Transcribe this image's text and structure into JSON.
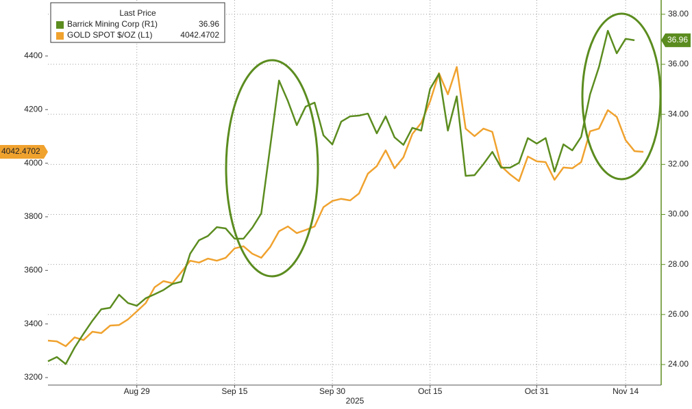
{
  "chart_data": {
    "type": "line",
    "legend_title": "Last Price",
    "xlabel": "2025",
    "grid": true,
    "legend": "upper left",
    "x": [
      "2025-08-15",
      "2025-08-18",
      "2025-08-19",
      "2025-08-20",
      "2025-08-21",
      "2025-08-22",
      "2025-08-25",
      "2025-08-26",
      "2025-08-27",
      "2025-08-28",
      "2025-08-29",
      "2025-09-01",
      "2025-09-02",
      "2025-09-03",
      "2025-09-04",
      "2025-09-05",
      "2025-09-08",
      "2025-09-09",
      "2025-09-10",
      "2025-09-11",
      "2025-09-12",
      "2025-09-15",
      "2025-09-16",
      "2025-09-17",
      "2025-09-18",
      "2025-09-19",
      "2025-09-22",
      "2025-09-23",
      "2025-09-24",
      "2025-09-25",
      "2025-09-26",
      "2025-09-29",
      "2025-09-30",
      "2025-10-01",
      "2025-10-02",
      "2025-10-03",
      "2025-10-06",
      "2025-10-07",
      "2025-10-08",
      "2025-10-09",
      "2025-10-10",
      "2025-10-13",
      "2025-10-14",
      "2025-10-15",
      "2025-10-16",
      "2025-10-17",
      "2025-10-20",
      "2025-10-21",
      "2025-10-22",
      "2025-10-23",
      "2025-10-24",
      "2025-10-27",
      "2025-10-28",
      "2025-10-29",
      "2025-10-30",
      "2025-10-31",
      "2025-11-03",
      "2025-11-04",
      "2025-11-05",
      "2025-11-06",
      "2025-11-07",
      "2025-11-10",
      "2025-11-11",
      "2025-11-12",
      "2025-11-13",
      "2025-11-14",
      "2025-11-17",
      "2025-11-18"
    ],
    "xlim": [
      "2025-08-15",
      "2025-11-20"
    ],
    "xticks": [
      {
        "value": "2025-08-29",
        "label": "Aug 29"
      },
      {
        "value": "2025-09-15",
        "label": "Sep 15"
      },
      {
        "value": "2025-09-30",
        "label": "Sep 30"
      },
      {
        "value": "2025-10-15",
        "label": "Oct 15"
      },
      {
        "value": "2025-10-31",
        "label": "Oct 31"
      },
      {
        "value": "2025-11-14",
        "label": "Nov 14"
      }
    ],
    "ylim": [
      3172,
      4609
    ],
    "yticks": [
      3200,
      3400,
      3600,
      3800,
      4000,
      4200,
      4400
    ],
    "y2lim": [
      23.18,
      38.57
    ],
    "y2ticks": [
      {
        "value": 24,
        "label": "24.00"
      },
      {
        "value": 26,
        "label": "26.00"
      },
      {
        "value": 28,
        "label": "28.00"
      },
      {
        "value": 30,
        "label": "30.00"
      },
      {
        "value": 32,
        "label": "32.00"
      },
      {
        "value": 34,
        "label": "34.00"
      },
      {
        "value": 36,
        "label": "36.00"
      },
      {
        "value": 38,
        "label": "38.00"
      }
    ],
    "series": [
      {
        "name": "Barrick Mining Corp (R1)",
        "color": "#5b8c1f",
        "axis": "y2",
        "values": [
          24.13,
          24.3,
          24.02,
          24.68,
          25.23,
          25.75,
          26.21,
          26.27,
          26.79,
          26.46,
          26.35,
          26.65,
          26.81,
          26.98,
          27.22,
          27.31,
          28.43,
          28.97,
          29.14,
          29.49,
          29.44,
          29.03,
          29.03,
          29.47,
          30.04,
          32.69,
          35.35,
          34.53,
          33.57,
          34.31,
          34.47,
          33.16,
          32.8,
          33.71,
          33.92,
          33.95,
          34.03,
          33.24,
          33.92,
          33.08,
          32.78,
          33.46,
          33.35,
          35.02,
          35.62,
          33.35,
          34.72,
          31.54,
          31.57,
          32.01,
          32.5,
          31.87,
          31.87,
          32.06,
          33.05,
          32.83,
          33.05,
          31.71,
          32.8,
          32.56,
          33.1,
          34.8,
          35.89,
          37.34,
          36.44,
          37.02,
          36.96,
          null
        ]
      },
      {
        "name": "GOLD SPOT $/OZ (L1)",
        "color": "#f0a22e",
        "values": [
          3338,
          3335,
          3317,
          3350,
          3340,
          3371,
          3366,
          3394,
          3396,
          3417,
          3447,
          3478,
          3537,
          3560,
          3552,
          3593,
          3636,
          3629,
          3644,
          3636,
          3647,
          3682,
          3690,
          3662,
          3647,
          3687,
          3746,
          3764,
          3739,
          3751,
          3764,
          3836,
          3859,
          3867,
          3861,
          3887,
          3961,
          3989,
          4048,
          3981,
          4022,
          4109,
          4150,
          4231,
          4336,
          4257,
          4359,
          4129,
          4101,
          4129,
          4117,
          3989,
          3958,
          3933,
          4025,
          4007,
          4004,
          3938,
          3984,
          3981,
          4004,
          4119,
          4129,
          4198,
          4173,
          4086,
          4045,
          4042.4702
        ]
      }
    ]
  }
}
